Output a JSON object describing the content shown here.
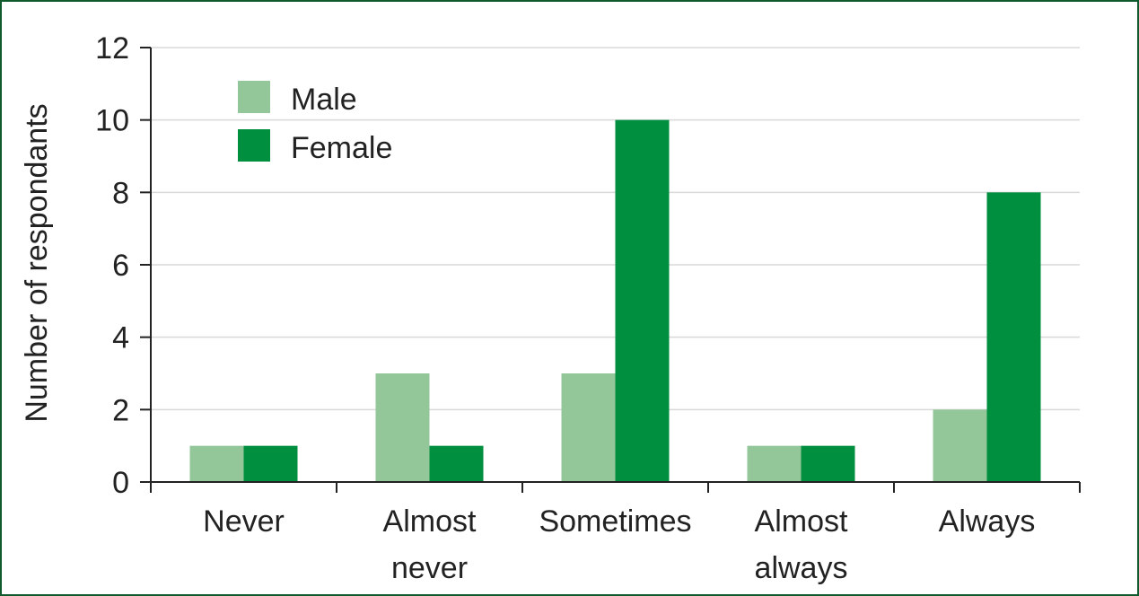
{
  "chart_data": {
    "type": "bar",
    "categories": [
      [
        "Never"
      ],
      [
        "Almost",
        "never"
      ],
      [
        "Sometimes"
      ],
      [
        "Almost",
        "always"
      ],
      [
        "Always"
      ]
    ],
    "series": [
      {
        "name": "Male",
        "color": "#93c79a",
        "values": [
          1,
          3,
          3,
          1,
          2
        ]
      },
      {
        "name": "Female",
        "color": "#008f3f",
        "values": [
          1,
          1,
          10,
          1,
          8
        ]
      }
    ],
    "ylabel": "Number of respondants",
    "xlabel": "",
    "ylim": [
      0,
      12
    ],
    "yticks": [
      0,
      2,
      4,
      6,
      8,
      10,
      12
    ],
    "grid": true,
    "legend_position": "top-left",
    "colors": {
      "frame": "#0f5b2e",
      "grid": "#d9d9d9",
      "axis": "#222222"
    }
  }
}
